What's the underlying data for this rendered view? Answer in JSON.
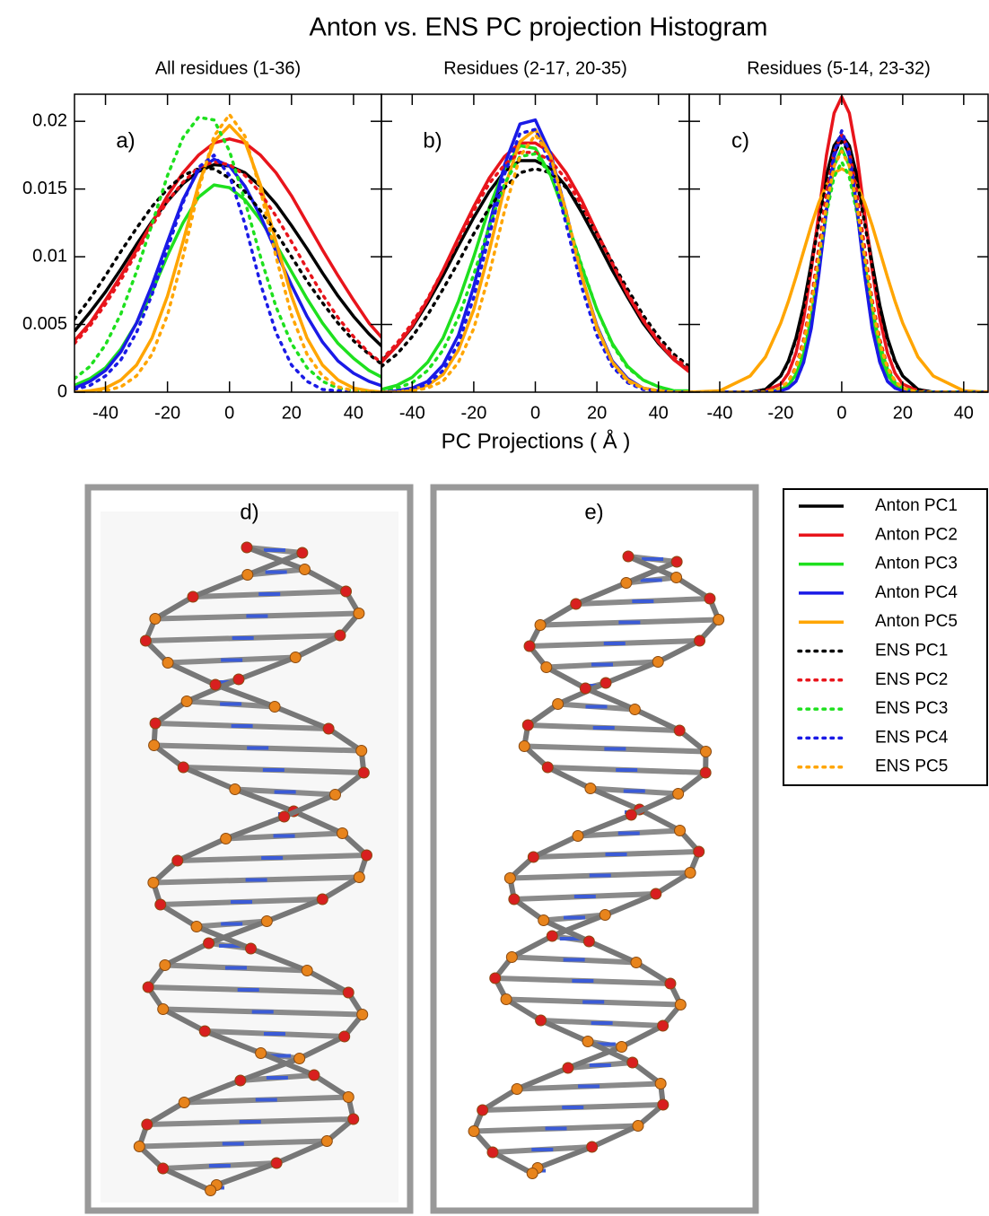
{
  "title": "Anton vs. ENS PC projection Histogram",
  "xlabel": "PC Projections ( Å )",
  "chart_data": [
    {
      "type": "line",
      "panel_label": "a)",
      "subtitle": "All residues (1-36)",
      "xlim": [
        -50,
        49
      ],
      "ylim": [
        0,
        0.022
      ],
      "xticks": [
        -40,
        -20,
        0,
        20,
        40
      ],
      "yticks": [
        0,
        0.005,
        0.01,
        0.015,
        0.02
      ],
      "x": [
        -50,
        -45,
        -40,
        -35,
        -30,
        -25,
        -20,
        -15,
        -10,
        -5,
        0,
        5,
        10,
        15,
        20,
        25,
        30,
        35,
        40,
        45,
        50
      ],
      "series": [
        {
          "name": "Anton PC1",
          "color": "#000000",
          "style": "solid",
          "values": [
            0.0045,
            0.0059,
            0.0074,
            0.0091,
            0.0109,
            0.0126,
            0.0141,
            0.0154,
            0.0163,
            0.0168,
            0.0167,
            0.0162,
            0.0152,
            0.0139,
            0.0123,
            0.0106,
            0.0088,
            0.0071,
            0.0056,
            0.0043,
            0.0032
          ]
        },
        {
          "name": "Anton PC2",
          "color": "#e8141b",
          "style": "solid",
          "values": [
            0.0038,
            0.0051,
            0.0068,
            0.0086,
            0.0105,
            0.0125,
            0.0145,
            0.0162,
            0.0175,
            0.0184,
            0.0187,
            0.0184,
            0.0175,
            0.0162,
            0.0145,
            0.0125,
            0.0105,
            0.0086,
            0.0068,
            0.0051,
            0.0038
          ]
        },
        {
          "name": "Anton PC3",
          "color": "#1ee01e",
          "style": "solid",
          "values": [
            0.0005,
            0.001,
            0.0018,
            0.0032,
            0.0051,
            0.0074,
            0.0101,
            0.0125,
            0.0144,
            0.0153,
            0.0151,
            0.0142,
            0.0127,
            0.0109,
            0.0089,
            0.0069,
            0.0051,
            0.0036,
            0.0025,
            0.0016,
            0.001
          ]
        },
        {
          "name": "Anton PC4",
          "color": "#1a1ae6",
          "style": "solid",
          "values": [
            0.0003,
            0.0008,
            0.0016,
            0.003,
            0.0051,
            0.0079,
            0.0111,
            0.0142,
            0.0164,
            0.0172,
            0.0167,
            0.0152,
            0.013,
            0.0104,
            0.0079,
            0.0056,
            0.0037,
            0.0023,
            0.0014,
            0.0008,
            0.0004
          ]
        },
        {
          "name": "Anton PC5",
          "color": "#ffa500",
          "style": "solid",
          "values": [
            0,
            0.0001,
            0.0003,
            0.0009,
            0.002,
            0.004,
            0.0071,
            0.0111,
            0.0153,
            0.0185,
            0.0197,
            0.0185,
            0.0153,
            0.0111,
            0.0071,
            0.004,
            0.002,
            0.0009,
            0.0003,
            0.0001,
            0
          ]
        },
        {
          "name": "ENS PC1",
          "color": "#000000",
          "style": "dotted",
          "values": [
            0.0054,
            0.0069,
            0.0086,
            0.0104,
            0.0121,
            0.0137,
            0.015,
            0.016,
            0.0165,
            0.0165,
            0.0158,
            0.0148,
            0.0134,
            0.0118,
            0.01,
            0.0082,
            0.0066,
            0.0051,
            0.0038,
            0.0028,
            0.0019
          ]
        },
        {
          "name": "ENS PC2",
          "color": "#e8141b",
          "style": "dotted",
          "values": [
            0.0036,
            0.0049,
            0.0065,
            0.0083,
            0.0103,
            0.0123,
            0.0141,
            0.0155,
            0.0166,
            0.017,
            0.0168,
            0.016,
            0.0147,
            0.013,
            0.0111,
            0.0091,
            0.0072,
            0.0055,
            0.0041,
            0.0029,
            0.002
          ]
        },
        {
          "name": "ENS PC3",
          "color": "#1ee01e",
          "style": "dotted",
          "values": [
            0.001,
            0.0019,
            0.0035,
            0.0058,
            0.0089,
            0.0124,
            0.016,
            0.0188,
            0.0203,
            0.0201,
            0.0178,
            0.0141,
            0.01,
            0.0063,
            0.0036,
            0.0018,
            0.0008,
            0.0003,
            0.0001,
            0,
            0
          ]
        },
        {
          "name": "ENS PC4",
          "color": "#1a1ae6",
          "style": "dotted",
          "values": [
            0.0002,
            0.0005,
            0.0012,
            0.0024,
            0.0044,
            0.0072,
            0.0106,
            0.014,
            0.0166,
            0.0175,
            0.016,
            0.0124,
            0.008,
            0.0044,
            0.002,
            0.0008,
            0.0002,
            0.0001,
            0,
            0,
            0
          ]
        },
        {
          "name": "ENS PC5",
          "color": "#ffa500",
          "style": "dotted",
          "values": [
            0,
            0,
            0.0001,
            0.0004,
            0.0012,
            0.0028,
            0.0057,
            0.01,
            0.0149,
            0.0189,
            0.0205,
            0.0189,
            0.0149,
            0.01,
            0.0057,
            0.0028,
            0.0012,
            0.0004,
            0.0001,
            0,
            0
          ]
        }
      ]
    },
    {
      "type": "line",
      "panel_label": "b)",
      "subtitle": "Residues (2-17, 20-35)",
      "xlim": [
        -50,
        50
      ],
      "ylim": [
        0,
        0.022
      ],
      "xticks": [
        -40,
        -20,
        0,
        20,
        40
      ],
      "yticks": [
        0,
        0.005,
        0.01,
        0.015,
        0.02
      ],
      "x": [
        -50,
        -45,
        -40,
        -35,
        -30,
        -25,
        -20,
        -15,
        -10,
        -5,
        0,
        5,
        10,
        15,
        20,
        25,
        30,
        35,
        40,
        45,
        50
      ],
      "series": [
        {
          "color": "#000000",
          "style": "solid",
          "values": [
            0.0023,
            0.0034,
            0.0048,
            0.0066,
            0.0086,
            0.0108,
            0.0129,
            0.0148,
            0.0163,
            0.0171,
            0.0171,
            0.0165,
            0.0152,
            0.0133,
            0.0112,
            0.009,
            0.007,
            0.0051,
            0.0036,
            0.0024,
            0.0016
          ]
        },
        {
          "color": "#e8141b",
          "style": "solid",
          "values": [
            0.0022,
            0.0034,
            0.0049,
            0.0068,
            0.009,
            0.0114,
            0.0137,
            0.0158,
            0.0174,
            0.0184,
            0.0184,
            0.0177,
            0.0162,
            0.0142,
            0.0118,
            0.0095,
            0.0072,
            0.0053,
            0.0037,
            0.0024,
            0.0015
          ]
        },
        {
          "color": "#1ee01e",
          "style": "solid",
          "values": [
            0.0002,
            0.0005,
            0.0011,
            0.0022,
            0.004,
            0.0067,
            0.01,
            0.0136,
            0.0165,
            0.0182,
            0.018,
            0.016,
            0.0129,
            0.0093,
            0.0061,
            0.0036,
            0.0019,
            0.0009,
            0.0004,
            0.0001,
            0.0001
          ]
        },
        {
          "color": "#1a1ae6",
          "style": "solid",
          "values": [
            0,
            0.0001,
            0.0003,
            0.0008,
            0.002,
            0.0042,
            0.0078,
            0.0123,
            0.0168,
            0.0198,
            0.0201,
            0.0176,
            0.0133,
            0.0086,
            0.0049,
            0.0023,
            0.001,
            0.0003,
            0.0001,
            0,
            0
          ]
        },
        {
          "color": "#ffa500",
          "style": "solid",
          "values": [
            0,
            0,
            0.0002,
            0.0005,
            0.0013,
            0.0031,
            0.0061,
            0.0104,
            0.0151,
            0.0185,
            0.0194,
            0.0174,
            0.0132,
            0.0086,
            0.0048,
            0.0022,
            0.0009,
            0.0003,
            0.0001,
            0,
            0
          ]
        },
        {
          "color": "#000000",
          "style": "dotted",
          "values": [
            0.0019,
            0.0028,
            0.0041,
            0.0057,
            0.0076,
            0.0096,
            0.0117,
            0.0136,
            0.0151,
            0.0162,
            0.0165,
            0.0162,
            0.0151,
            0.0136,
            0.0117,
            0.0096,
            0.0076,
            0.0057,
            0.0041,
            0.0028,
            0.0019
          ]
        },
        {
          "color": "#e8141b",
          "style": "dotted",
          "values": [
            0.0024,
            0.0036,
            0.0051,
            0.0069,
            0.009,
            0.0112,
            0.0134,
            0.0154,
            0.0168,
            0.0177,
            0.0177,
            0.0171,
            0.0157,
            0.0138,
            0.0117,
            0.0095,
            0.0073,
            0.0054,
            0.0038,
            0.0026,
            0.0017
          ]
        },
        {
          "color": "#1ee01e",
          "style": "dotted",
          "values": [
            0.0001,
            0.0003,
            0.0007,
            0.0016,
            0.0031,
            0.0055,
            0.0087,
            0.0122,
            0.0154,
            0.0174,
            0.0176,
            0.016,
            0.0129,
            0.0094,
            0.0061,
            0.0035,
            0.0018,
            0.0009,
            0.0004,
            0.0001,
            0
          ]
        },
        {
          "color": "#1a1ae6",
          "style": "dotted",
          "values": [
            0,
            0.0001,
            0.0002,
            0.0006,
            0.0016,
            0.0036,
            0.007,
            0.0115,
            0.0161,
            0.0191,
            0.0194,
            0.0168,
            0.0124,
            0.0078,
            0.0042,
            0.0019,
            0.0007,
            0.0002,
            0.0001,
            0,
            0
          ]
        },
        {
          "color": "#ffa500",
          "style": "dotted",
          "values": [
            0,
            0,
            0.0001,
            0.0003,
            0.0008,
            0.0022,
            0.0047,
            0.0087,
            0.0134,
            0.0174,
            0.019,
            0.0174,
            0.0134,
            0.0087,
            0.0047,
            0.0022,
            0.0008,
            0.0003,
            0.0001,
            0,
            0
          ]
        }
      ]
    },
    {
      "type": "line",
      "panel_label": "c)",
      "subtitle": "Residues (5-14, 23-32)",
      "xlim": [
        -50,
        48
      ],
      "ylim": [
        0,
        0.022
      ],
      "xticks": [
        -40,
        -20,
        0,
        20,
        40
      ],
      "yticks": [
        0,
        0.005,
        0.01,
        0.015,
        0.02
      ],
      "x": [
        -50,
        -40,
        -30,
        -25,
        -20,
        -17.5,
        -15,
        -12.5,
        -10,
        -7.5,
        -5,
        -2.5,
        0,
        2.5,
        5,
        7.5,
        10,
        12.5,
        15,
        17.5,
        20,
        25,
        30,
        40,
        48
      ],
      "series": [
        {
          "color": "#000000",
          "style": "solid",
          "values": [
            0,
            0,
            0,
            0.0002,
            0.0012,
            0.0023,
            0.004,
            0.0064,
            0.0095,
            0.0129,
            0.016,
            0.0182,
            0.019,
            0.0182,
            0.016,
            0.0129,
            0.0095,
            0.0064,
            0.004,
            0.0023,
            0.0012,
            0.0002,
            0,
            0,
            0
          ]
        },
        {
          "color": "#e8141b",
          "style": "solid",
          "values": [
            0,
            0,
            0,
            0.0001,
            0.0006,
            0.0014,
            0.0029,
            0.0054,
            0.009,
            0.0132,
            0.0175,
            0.0206,
            0.0218,
            0.0206,
            0.0175,
            0.0132,
            0.009,
            0.0054,
            0.0029,
            0.0014,
            0.0006,
            0.0001,
            0,
            0,
            0
          ]
        },
        {
          "color": "#1ee01e",
          "style": "solid",
          "values": [
            0,
            0,
            0,
            0,
            0.0002,
            0.0005,
            0.0013,
            0.0028,
            0.0055,
            0.0093,
            0.0134,
            0.0167,
            0.018,
            0.0167,
            0.0134,
            0.0093,
            0.0055,
            0.0028,
            0.0013,
            0.0005,
            0.0002,
            0,
            0,
            0,
            0
          ]
        },
        {
          "color": "#1a1ae6",
          "style": "solid",
          "values": [
            0,
            0,
            0,
            0,
            0.0001,
            0.0003,
            0.0008,
            0.0022,
            0.0047,
            0.0087,
            0.0134,
            0.0174,
            0.019,
            0.0174,
            0.0134,
            0.0087,
            0.0047,
            0.0022,
            0.0008,
            0.0003,
            0.0001,
            0,
            0,
            0,
            0
          ]
        },
        {
          "color": "#ffa500",
          "style": "solid",
          "values": [
            0,
            0.0001,
            0.0012,
            0.0026,
            0.0051,
            0.0067,
            0.0085,
            0.0104,
            0.0123,
            0.014,
            0.0153,
            0.0162,
            0.0165,
            0.0162,
            0.0153,
            0.014,
            0.0123,
            0.0104,
            0.0085,
            0.0067,
            0.0051,
            0.0026,
            0.0012,
            0.0001,
            0
          ]
        },
        {
          "color": "#000000",
          "style": "dotted",
          "values": [
            0,
            0,
            0,
            0.0002,
            0.0012,
            0.0022,
            0.0039,
            0.0063,
            0.0093,
            0.0125,
            0.0156,
            0.0177,
            0.0185,
            0.0177,
            0.0156,
            0.0125,
            0.0093,
            0.0063,
            0.0039,
            0.0022,
            0.0012,
            0.0002,
            0,
            0,
            0
          ]
        },
        {
          "color": "#e8141b",
          "style": "dotted",
          "values": [
            0,
            0,
            0,
            0,
            0.0003,
            0.0008,
            0.0019,
            0.0039,
            0.0068,
            0.0107,
            0.0147,
            0.0178,
            0.019,
            0.0178,
            0.0147,
            0.0107,
            0.0068,
            0.0039,
            0.0019,
            0.0008,
            0.0003,
            0,
            0,
            0,
            0
          ]
        },
        {
          "color": "#1ee01e",
          "style": "dotted",
          "values": [
            0,
            0,
            0,
            0,
            0.0003,
            0.0007,
            0.0017,
            0.0035,
            0.0061,
            0.0096,
            0.0132,
            0.0159,
            0.017,
            0.0159,
            0.0132,
            0.0096,
            0.0061,
            0.0035,
            0.0017,
            0.0007,
            0.0003,
            0,
            0,
            0,
            0
          ]
        },
        {
          "color": "#1a1ae6",
          "style": "dotted",
          "values": [
            0,
            0,
            0,
            0,
            0.0001,
            0.0003,
            0.0008,
            0.0022,
            0.0048,
            0.0088,
            0.0136,
            0.0177,
            0.0193,
            0.0177,
            0.0136,
            0.0088,
            0.0048,
            0.0022,
            0.0008,
            0.0003,
            0.0001,
            0,
            0,
            0,
            0
          ]
        },
        {
          "color": "#ffa500",
          "style": "dotted",
          "values": [
            0,
            0,
            0,
            0,
            0.0003,
            0.0008,
            0.0018,
            0.0036,
            0.0064,
            0.01,
            0.0138,
            0.0167,
            0.0178,
            0.0167,
            0.0138,
            0.01,
            0.0064,
            0.0036,
            0.0018,
            0.0008,
            0.0003,
            0,
            0,
            0,
            0
          ]
        }
      ]
    }
  ],
  "structures": [
    {
      "label": "d)"
    },
    {
      "label": "e)"
    }
  ]
}
